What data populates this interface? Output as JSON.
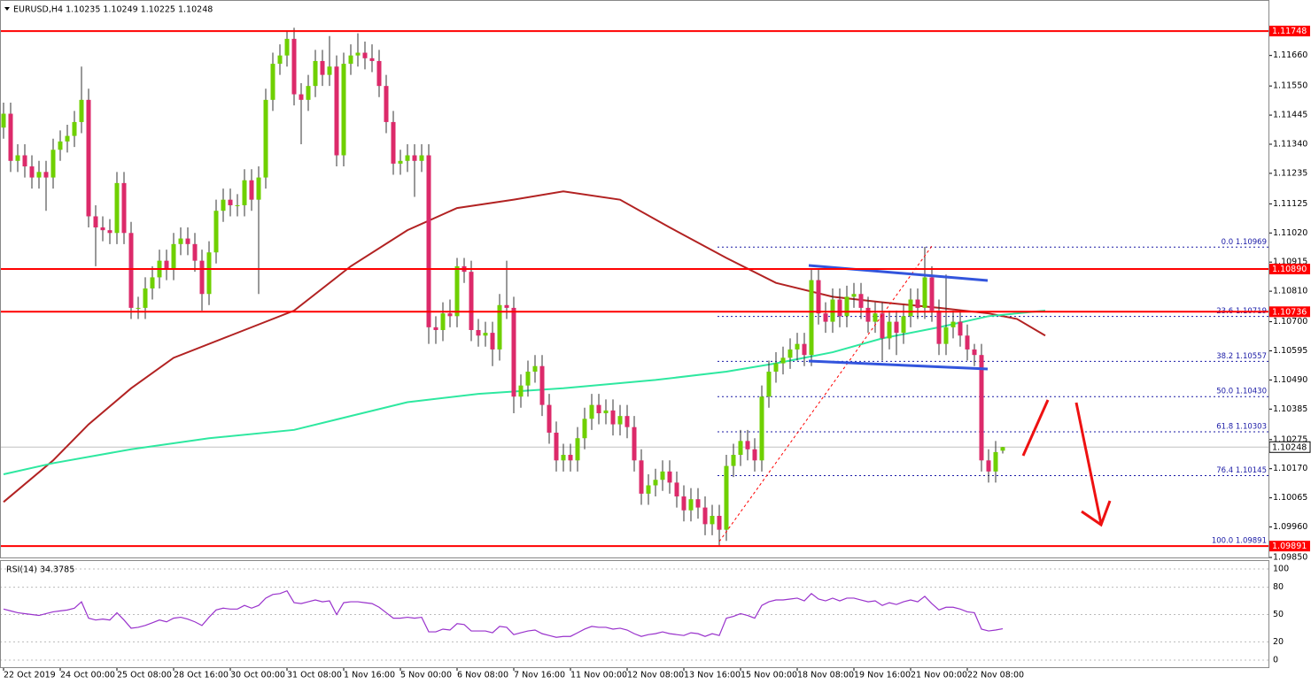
{
  "chart_data": {
    "type": "candlestick",
    "title": "EURUSD,H4  1.10235 1.10249 1.10225 1.10248",
    "categories": [
      "22 Oct 2019",
      null,
      null,
      null,
      null,
      null,
      null,
      null,
      "24 Oct 00:00",
      null,
      null,
      null,
      null,
      null,
      null,
      null,
      "25 Oct 08:00",
      null,
      null,
      null,
      null,
      null,
      null,
      null,
      "28 Oct 16:00",
      null,
      null,
      null,
      null,
      null,
      null,
      null,
      "30 Oct 00:00",
      null,
      null,
      null,
      null,
      null,
      null,
      null,
      "31 Oct 08:00",
      null,
      null,
      null,
      null,
      null,
      null,
      null,
      "1 Nov 16:00",
      null,
      null,
      null,
      null,
      null,
      null,
      null,
      "5 Nov 00:00",
      null,
      null,
      null,
      null,
      null,
      null,
      null,
      "6 Nov 08:00",
      null,
      null,
      null,
      null,
      null,
      null,
      null,
      "7 Nov 16:00",
      null,
      null,
      null,
      null,
      null,
      null,
      null,
      "11 Nov 00:00",
      null,
      null,
      null,
      null,
      null,
      null,
      null,
      "12 Nov 08:00",
      null,
      null,
      null,
      null,
      null,
      null,
      null,
      "13 Nov 16:00",
      null,
      null,
      null,
      null,
      null,
      null,
      null,
      "15 Nov 00:00",
      null,
      null,
      null,
      null,
      null,
      null,
      null,
      "18 Nov 08:00",
      null,
      null,
      null,
      null,
      null,
      null,
      null,
      "19 Nov 16:00",
      null,
      null,
      null,
      null,
      null,
      null,
      null,
      "21 Nov 00:00",
      null,
      null,
      null,
      null,
      null,
      null,
      null,
      "22 Nov 08:00",
      null,
      null,
      null,
      null,
      null
    ],
    "open": [
      1.114,
      1.1145,
      1.1128,
      1.113,
      1.1126,
      1.1122,
      1.1124,
      1.1122,
      1.1132,
      1.1135,
      1.1137,
      1.1142,
      1.115,
      1.1108,
      1.1104,
      1.1103,
      1.1102,
      1.112,
      1.1102,
      1.1075,
      1.1075,
      1.1082,
      1.1086,
      1.1092,
      1.1089,
      1.1098,
      1.11,
      1.1098,
      1.1092,
      1.108,
      1.1095,
      1.111,
      1.1114,
      1.1112,
      1.1112,
      1.1121,
      1.1114,
      1.1122,
      1.115,
      1.1163,
      1.1166,
      1.1172,
      1.1152,
      1.115,
      1.1155,
      1.1164,
      1.1159,
      1.1162,
      1.113,
      1.1163,
      1.1166,
      1.1167,
      1.1165,
      1.1164,
      1.1155,
      1.1142,
      1.1127,
      1.1128,
      1.113,
      1.1128,
      1.113,
      1.1068,
      1.1067,
      1.1073,
      1.1072,
      1.109,
      1.1088,
      1.1067,
      1.1065,
      1.1066,
      1.106,
      1.1076,
      1.1075,
      1.1043,
      1.1047,
      1.1052,
      1.1054,
      1.104,
      1.103,
      1.102,
      1.1022,
      1.102,
      1.1028,
      1.1035,
      1.104,
      1.1037,
      1.1038,
      1.1033,
      1.1036,
      1.1032,
      1.102,
      1.1008,
      1.1011,
      1.1013,
      1.1016,
      1.1012,
      1.1007,
      1.1002,
      1.1006,
      1.1003,
      1.0997,
      1.1,
      1.0995,
      1.1018,
      1.1022,
      1.1027,
      1.1024,
      1.102,
      1.1043,
      1.1052,
      1.1055,
      1.1057,
      1.106,
      1.1062,
      1.1058,
      1.1085,
      1.1073,
      1.107,
      1.1078,
      1.1072,
      1.1079,
      1.108,
      1.1075,
      1.107,
      1.1073,
      1.1064,
      1.107,
      1.1066,
      1.1072,
      1.1078,
      1.1075,
      1.1086,
      1.1074,
      1.1062,
      1.1068,
      1.107,
      1.1065,
      1.106,
      1.1058,
      1.102,
      1.1016,
      1.10235
    ],
    "high": [
      1.1149,
      1.1149,
      1.1134,
      1.1134,
      1.113,
      1.1128,
      1.1128,
      1.1136,
      1.1139,
      1.1141,
      1.1146,
      1.1162,
      1.1154,
      1.1112,
      1.1108,
      1.1107,
      1.1124,
      1.1124,
      1.1106,
      1.1079,
      1.1086,
      1.109,
      1.1096,
      1.1096,
      1.1102,
      1.1104,
      1.1104,
      1.1102,
      1.1096,
      1.1099,
      1.1114,
      1.1118,
      1.1118,
      1.1116,
      1.1125,
      1.1125,
      1.1126,
      1.1154,
      1.1167,
      1.117,
      1.1175,
      1.1176,
      1.1156,
      1.1159,
      1.1168,
      1.1168,
      1.1173,
      1.1166,
      1.1167,
      1.117,
      1.1174,
      1.1171,
      1.117,
      1.1168,
      1.1159,
      1.1146,
      1.1132,
      1.1134,
      1.1134,
      1.1134,
      1.1134,
      1.1072,
      1.1077,
      1.1078,
      1.1093,
      1.1093,
      1.1092,
      1.1071,
      1.107,
      1.107,
      1.108,
      1.1092,
      1.1079,
      1.1051,
      1.1056,
      1.1058,
      1.1058,
      1.1044,
      1.1034,
      1.1026,
      1.1026,
      1.1032,
      1.1039,
      1.1044,
      1.1044,
      1.1042,
      1.1042,
      1.104,
      1.104,
      1.1036,
      1.1024,
      1.1015,
      1.1017,
      1.102,
      1.102,
      1.1016,
      1.1011,
      1.101,
      1.101,
      1.1007,
      1.1004,
      1.1004,
      1.1022,
      1.1026,
      1.1031,
      1.1031,
      1.1028,
      1.1047,
      1.1056,
      1.1059,
      1.1061,
      1.1064,
      1.1066,
      1.1066,
      1.1089,
      1.1089,
      1.1077,
      1.1082,
      1.1082,
      1.1083,
      1.1084,
      1.1084,
      1.1079,
      1.1077,
      1.1077,
      1.1074,
      1.1074,
      1.1076,
      1.1082,
      1.1082,
      1.1097,
      1.109,
      1.1078,
      1.1087,
      1.1074,
      1.1074,
      1.1069,
      1.1062,
      1.1062,
      1.1024,
      1.1027,
      1.10249
    ],
    "low": [
      1.1136,
      1.1124,
      1.1124,
      1.1122,
      1.1118,
      1.1118,
      1.111,
      1.1118,
      1.1128,
      1.1131,
      1.1133,
      1.1138,
      1.1104,
      1.109,
      1.1099,
      1.1098,
      1.1098,
      1.1098,
      1.1071,
      1.1071,
      1.1071,
      1.1078,
      1.1082,
      1.1085,
      1.1085,
      1.1094,
      1.1094,
      1.1088,
      1.1074,
      1.1076,
      1.1091,
      1.1106,
      1.1108,
      1.1108,
      1.1108,
      1.111,
      1.108,
      1.1118,
      1.1146,
      1.1159,
      1.1162,
      1.1148,
      1.1134,
      1.1146,
      1.1151,
      1.1155,
      1.1155,
      1.1126,
      1.1126,
      1.1159,
      1.1162,
      1.1161,
      1.116,
      1.1151,
      1.1138,
      1.1123,
      1.1123,
      1.1124,
      1.1115,
      1.1124,
      1.1062,
      1.1062,
      1.1063,
      1.1068,
      1.1068,
      1.1084,
      1.1063,
      1.1061,
      1.1061,
      1.1054,
      1.1056,
      1.1071,
      1.1037,
      1.1039,
      1.1043,
      1.1048,
      1.1036,
      1.1026,
      1.1016,
      1.1016,
      1.1016,
      1.1016,
      1.1024,
      1.1031,
      1.1033,
      1.1033,
      1.1029,
      1.1029,
      1.1028,
      1.1016,
      1.1004,
      1.1004,
      1.1007,
      1.1009,
      1.1008,
      1.1003,
      1.0998,
      1.0998,
      1.0999,
      1.0993,
      1.0993,
      1.0989,
      1.0991,
      1.1014,
      1.1018,
      1.102,
      1.1016,
      1.1016,
      1.1039,
      1.1048,
      1.1051,
      1.1053,
      1.1056,
      1.1054,
      1.1054,
      1.1069,
      1.1066,
      1.1066,
      1.1068,
      1.1068,
      1.1075,
      1.1071,
      1.1066,
      1.1066,
      1.1056,
      1.106,
      1.1058,
      1.1062,
      1.1068,
      1.1071,
      1.1071,
      1.107,
      1.1058,
      1.1058,
      1.1064,
      1.1061,
      1.1056,
      1.1054,
      1.1016,
      1.1012,
      1.1012,
      1.10225
    ],
    "close": [
      1.1145,
      1.1128,
      1.113,
      1.1126,
      1.1122,
      1.1124,
      1.1122,
      1.1132,
      1.1135,
      1.1137,
      1.1142,
      1.115,
      1.1108,
      1.1104,
      1.1103,
      1.1102,
      1.112,
      1.1102,
      1.1075,
      1.1075,
      1.1082,
      1.1086,
      1.1092,
      1.1089,
      1.1098,
      1.11,
      1.1098,
      1.1092,
      1.108,
      1.1095,
      1.111,
      1.1114,
      1.1112,
      1.1112,
      1.1121,
      1.1114,
      1.1122,
      1.115,
      1.1163,
      1.1166,
      1.1172,
      1.1152,
      1.115,
      1.1155,
      1.1164,
      1.1159,
      1.1162,
      1.113,
      1.1163,
      1.1166,
      1.1167,
      1.1165,
      1.1164,
      1.1155,
      1.1142,
      1.1127,
      1.1128,
      1.113,
      1.1128,
      1.113,
      1.1068,
      1.1067,
      1.1073,
      1.1072,
      1.109,
      1.1088,
      1.1067,
      1.1065,
      1.1066,
      1.106,
      1.1076,
      1.1075,
      1.1043,
      1.1047,
      1.1052,
      1.1054,
      1.104,
      1.103,
      1.102,
      1.1022,
      1.102,
      1.1028,
      1.1035,
      1.104,
      1.1037,
      1.1038,
      1.1033,
      1.1036,
      1.1032,
      1.102,
      1.1008,
      1.1011,
      1.1013,
      1.1016,
      1.1012,
      1.1007,
      1.1002,
      1.1006,
      1.1003,
      1.0997,
      1.1,
      1.0995,
      1.1018,
      1.1022,
      1.1027,
      1.1024,
      1.102,
      1.1043,
      1.1052,
      1.1055,
      1.1057,
      1.106,
      1.1062,
      1.1058,
      1.1085,
      1.1073,
      1.107,
      1.1078,
      1.1072,
      1.1079,
      1.108,
      1.1075,
      1.107,
      1.1073,
      1.1064,
      1.107,
      1.1066,
      1.1072,
      1.1078,
      1.1075,
      1.1086,
      1.1074,
      1.1062,
      1.1068,
      1.107,
      1.1065,
      1.106,
      1.1058,
      1.102,
      1.1016,
      1.1023,
      1.10248
    ],
    "up_color": "#6fd000",
    "down_color": "#dc2a6a",
    "wick_color": "#333333",
    "ylim": [
      1.0985,
      1.1186
    ],
    "yticks": [
      {
        "value": 1.1166,
        "label": "1.11660"
      },
      {
        "value": 1.1155,
        "label": "1.11550"
      },
      {
        "value": 1.11445,
        "label": "1.11445"
      },
      {
        "value": 1.1134,
        "label": "1.11340"
      },
      {
        "value": 1.11235,
        "label": "1.11235"
      },
      {
        "value": 1.11125,
        "label": "1.11125"
      },
      {
        "value": 1.1102,
        "label": "1.11020"
      },
      {
        "value": 1.10915,
        "label": "1.10915"
      },
      {
        "value": 1.1081,
        "label": "1.10810"
      },
      {
        "value": 1.107,
        "label": "1.10700"
      },
      {
        "value": 1.10595,
        "label": "1.10595"
      },
      {
        "value": 1.1049,
        "label": "1.10490"
      },
      {
        "value": 1.10385,
        "label": "1.10385"
      },
      {
        "value": 1.10275,
        "label": "1.10275"
      },
      {
        "value": 1.1017,
        "label": "1.10170"
      },
      {
        "value": 1.10065,
        "label": "1.10065"
      },
      {
        "value": 1.0996,
        "label": "1.09960"
      },
      {
        "value": 1.0985,
        "label": "1.09850"
      }
    ],
    "grid": false,
    "levels": {
      "values": [
        1.11748,
        1.1089,
        1.10736,
        1.09891
      ],
      "value_labels": [
        "1.11748",
        "1.10890",
        "1.10736",
        "1.09891"
      ],
      "color": "#ff0000"
    },
    "current_price": {
      "value": 1.10248,
      "label": "1.10248",
      "color": "#c0c0c0"
    },
    "fibonacci": {
      "prices": [
        1.10969,
        1.10719,
        1.10557,
        1.1043,
        1.10303,
        1.10145,
        1.09891
      ],
      "labels": [
        "0.0 1.10969",
        "23.6 1.10719",
        "38.2 1.10557",
        "50.0 1.10430",
        "61.8 1.10303",
        "76.4 1.10145",
        "100.0 1.09891"
      ],
      "color": "#1a1aa6"
    },
    "moving_averages": [
      {
        "color": "#b22222",
        "x": [
          0,
          7,
          12,
          18,
          24,
          32,
          41,
          49,
          57,
          64,
          72,
          79,
          87,
          94,
          102,
          109,
          117,
          124,
          132,
          139,
          143,
          147
        ],
        "values": [
          1.1005,
          1.102,
          1.1033,
          1.1046,
          1.1057,
          1.1065,
          1.1074,
          1.109,
          1.1103,
          1.1111,
          1.1114,
          1.1117,
          1.1114,
          1.1104,
          1.1093,
          1.1084,
          1.1079,
          1.1077,
          1.1075,
          1.1073,
          1.1071,
          1.1065
        ]
      },
      {
        "color": "#2ee8a0",
        "x": [
          0,
          7,
          18,
          29,
          41,
          49,
          57,
          67,
          79,
          92,
          102,
          109,
          117,
          124,
          132,
          139,
          147
        ],
        "values": [
          1.1015,
          1.1019,
          1.1024,
          1.1028,
          1.1031,
          1.1036,
          1.1041,
          1.1044,
          1.1046,
          1.1049,
          1.1052,
          1.1055,
          1.1059,
          1.1064,
          1.1068,
          1.1072,
          1.1074
        ]
      }
    ],
    "rsi": {
      "title": "RSI(14) 34.3785",
      "color": "#9932cc",
      "ylim": [
        0,
        100
      ],
      "yticks": [
        0,
        20,
        50,
        80,
        100
      ],
      "values": [
        56,
        54,
        52,
        51,
        50,
        49,
        51,
        53,
        54,
        55,
        57,
        64,
        46,
        44,
        45,
        44,
        52,
        44,
        35,
        36,
        38,
        41,
        44,
        42,
        46,
        47,
        45,
        42,
        38,
        47,
        55,
        57,
        56,
        56,
        60,
        57,
        60,
        68,
        72,
        73,
        76,
        63,
        62,
        64,
        66,
        64,
        65,
        50,
        63,
        64,
        64,
        63,
        62,
        58,
        52,
        46,
        46,
        47,
        46,
        47,
        31,
        31,
        34,
        33,
        40,
        39,
        32,
        32,
        32,
        30,
        37,
        36,
        28,
        30,
        32,
        33,
        29,
        27,
        25,
        26,
        26,
        30,
        34,
        37,
        36,
        36,
        34,
        35,
        33,
        29,
        26,
        28,
        29,
        31,
        29,
        28,
        27,
        30,
        29,
        26,
        29,
        27,
        46,
        48,
        51,
        49,
        46,
        60,
        64,
        66,
        66,
        67,
        68,
        65,
        73,
        67,
        65,
        68,
        65,
        68,
        68,
        66,
        64,
        65,
        60,
        63,
        61,
        64,
        66,
        64,
        70,
        62,
        55,
        58,
        58,
        56,
        53,
        52,
        34,
        32,
        33,
        34.3785
      ]
    }
  }
}
